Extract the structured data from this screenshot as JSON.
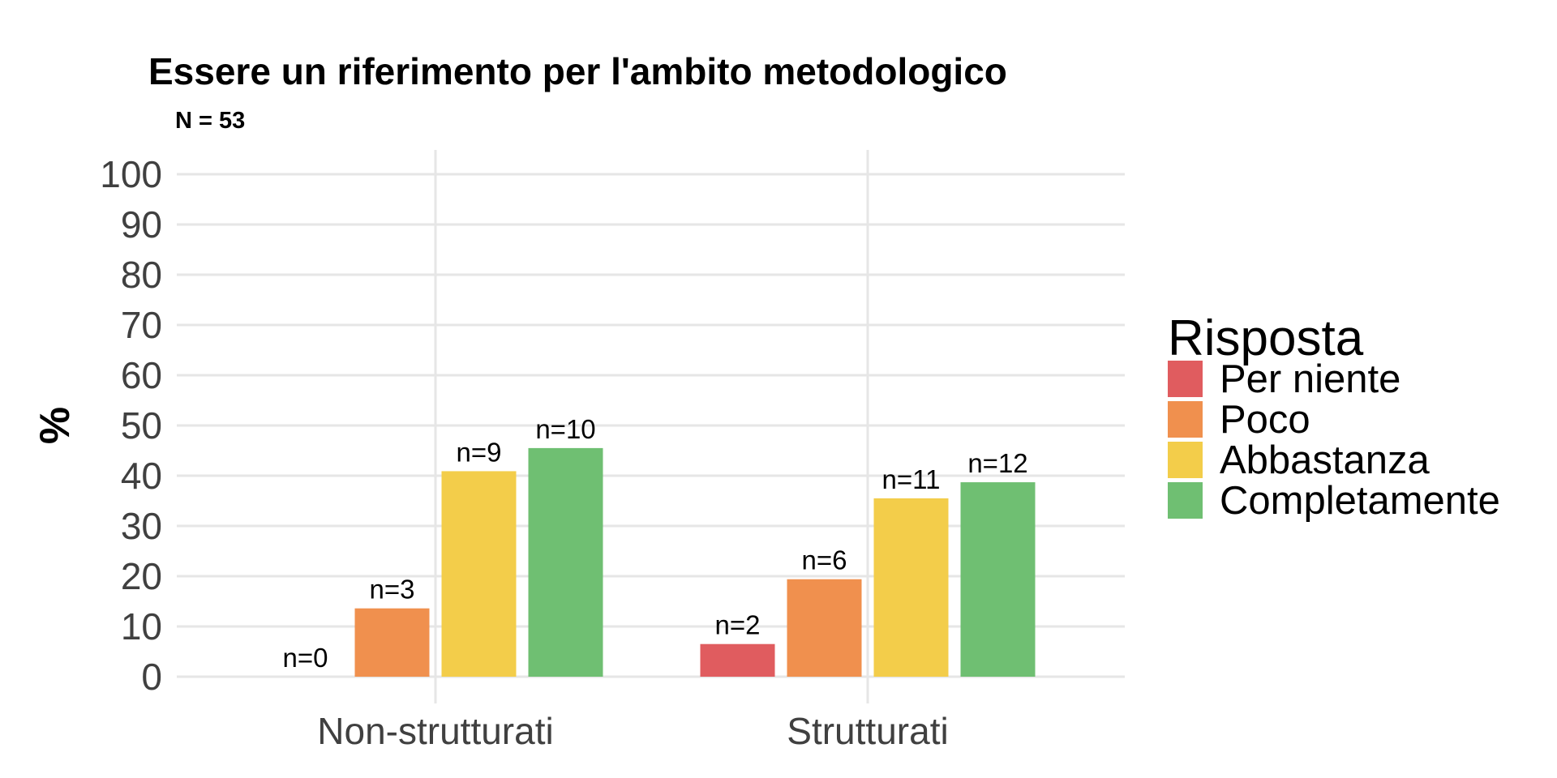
{
  "chart_data": {
    "type": "bar",
    "title": "Essere un riferimento per l'ambito metodologico",
    "subtitle": "N = 53",
    "xlabel": "",
    "ylabel": "%",
    "ylim": [
      0,
      100
    ],
    "yticks": [
      "0",
      "10",
      "20",
      "30",
      "40",
      "50",
      "60",
      "70",
      "80",
      "90",
      "100"
    ],
    "categories": [
      "Non-strutturati",
      "Strutturati"
    ],
    "grid": true,
    "legend": {
      "title": "Risposta",
      "placement": "right"
    },
    "series": [
      {
        "name": "Per niente",
        "color": "#E05C5F",
        "values": [
          0,
          6.5
        ],
        "labels": [
          "n=0",
          "n=2"
        ]
      },
      {
        "name": "Poco",
        "color": "#F0904E",
        "values": [
          13.6,
          19.4
        ],
        "labels": [
          "n=3",
          "n=6"
        ]
      },
      {
        "name": "Abbastanza",
        "color": "#F3CD4A",
        "values": [
          40.9,
          35.5
        ],
        "labels": [
          "n=9",
          "n=11"
        ]
      },
      {
        "name": "Completamente",
        "color": "#6FBF72",
        "values": [
          45.5,
          38.7
        ],
        "labels": [
          "n=10",
          "n=12"
        ]
      }
    ]
  }
}
